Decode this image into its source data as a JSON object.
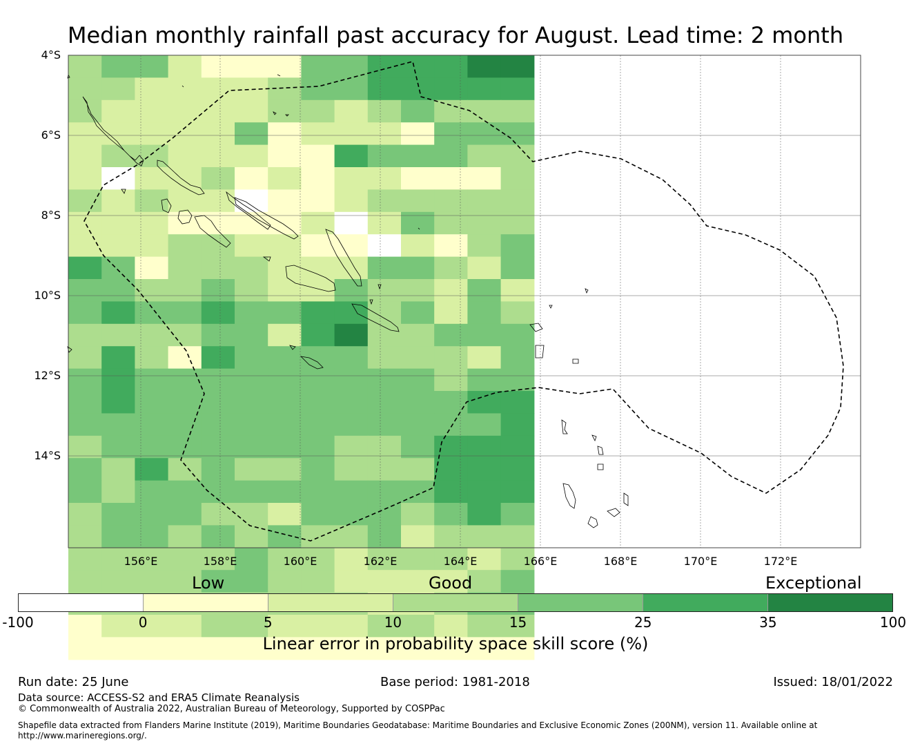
{
  "title": "Median monthly rainfall past accuracy for August. Lead time: 2 month",
  "map": {
    "lat_labels": [
      "4°S",
      "6°S",
      "8°S",
      "10°S",
      "12°S",
      "14°S"
    ],
    "lon_labels": [
      "156°E",
      "158°E",
      "160°E",
      "162°E",
      "164°E",
      "166°E",
      "168°E",
      "170°E",
      "172°E"
    ],
    "skill_grid": [
      "34421114455566",
      "33222234455555",
      "32222233234333",
      "22222412221444",
      "23322211544433",
      "20223121221113",
      "32322011233333",
      "22211112024333",
      "22233221102134",
      "54133322244324",
      "44334322433242",
      "45445445534243",
      "33334425633444",
      "35315444433324",
      "45444444444344",
      "45444444444455",
      "44444444444445",
      "34444444334555",
      "43534334333555",
      "43444444444555",
      "34443324443454",
      "34434343342333",
      "33333433233323",
      "33334433222234",
      "33333333322344",
      "12223322233233",
      "11111111111111"
    ],
    "colors": [
      "#ffffff",
      "#ffffcc",
      "#d9f0a3",
      "#addd8e",
      "#78c679",
      "#41ab5d",
      "#238443"
    ]
  },
  "legend": {
    "categories": [
      "Low",
      "Good",
      "Exceptional"
    ],
    "ticks": [
      "-100",
      "0",
      "5",
      "10",
      "15",
      "25",
      "35",
      "100"
    ],
    "colorbar_title": "Linear error in probability space skill score (%)"
  },
  "footer": {
    "run_date": "Run date: 25 June",
    "base_period": "Base period: 1981-2018",
    "issued": "Issued: 18/01/2022",
    "data_source": "Data source: ACCESS-S2 and ERA5 Climate Reanalysis",
    "copyright": "© Commonwealth of Australia 2022, Australian Bureau of Meteorology, Supported by COSPPac",
    "shapefile_line1": "Shapefile data extracted from Flanders Marine Institute (2019), Maritime Boundaries Geodatabase: Maritime Boundaries and Exclusive Economic Zones (200NM), version 11. Available online at",
    "shapefile_line2": "http://www.marineregions.org/."
  }
}
